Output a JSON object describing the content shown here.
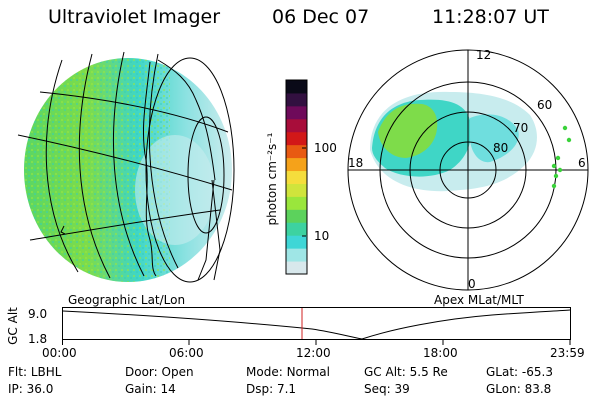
{
  "header": {
    "title": "Ultraviolet Imager",
    "date": "06 Dec 07",
    "time": "11:28:07 UT"
  },
  "colorbar": {
    "unit_label": "photon cm⁻²s⁻¹",
    "ticks": [
      "100",
      "10"
    ],
    "colors": [
      "#d8e8ec",
      "#9fe6e6",
      "#3fd6d6",
      "#3dd2a0",
      "#5cd25c",
      "#9ae63c",
      "#d0e43c",
      "#f5dd3c",
      "#f5a21a",
      "#e85a12",
      "#d21818",
      "#a80d3a",
      "#6e0a5a",
      "#321040",
      "#0a0a18"
    ]
  },
  "panels": {
    "left_caption": "Geographic Lat/Lon",
    "right_caption": "Apex MLat/MLT",
    "polar_hour_labels": {
      "top": "12",
      "left": "18",
      "right": "6",
      "bottom": "0"
    },
    "polar_lat_labels": [
      "60",
      "70",
      "80"
    ]
  },
  "altitude_strip": {
    "axis_label": "GC Alt",
    "y_ticks": [
      "9.0",
      "1.8"
    ],
    "x_ticks": [
      "00:00",
      "06:00",
      "12:00",
      "18:00",
      "23:59"
    ],
    "current_time_color": "#d02020"
  },
  "status": [
    [
      {
        "k": "Flt:",
        "v": "LBHL"
      },
      {
        "k": "Door:",
        "v": "Open"
      },
      {
        "k": "Mode:",
        "v": "Normal"
      },
      {
        "k": "GC Alt:",
        "v": "5.5 Re"
      },
      {
        "k": "GLat:",
        "v": "-65.3"
      }
    ],
    [
      {
        "k": "IP:",
        "v": "36.0"
      },
      {
        "k": "Gain:",
        "v": "14"
      },
      {
        "k": "Dsp:",
        "v": "7.1"
      },
      {
        "k": "Seq:",
        "v": "39"
      },
      {
        "k": "GLon:",
        "v": "83.8"
      }
    ]
  ]
}
